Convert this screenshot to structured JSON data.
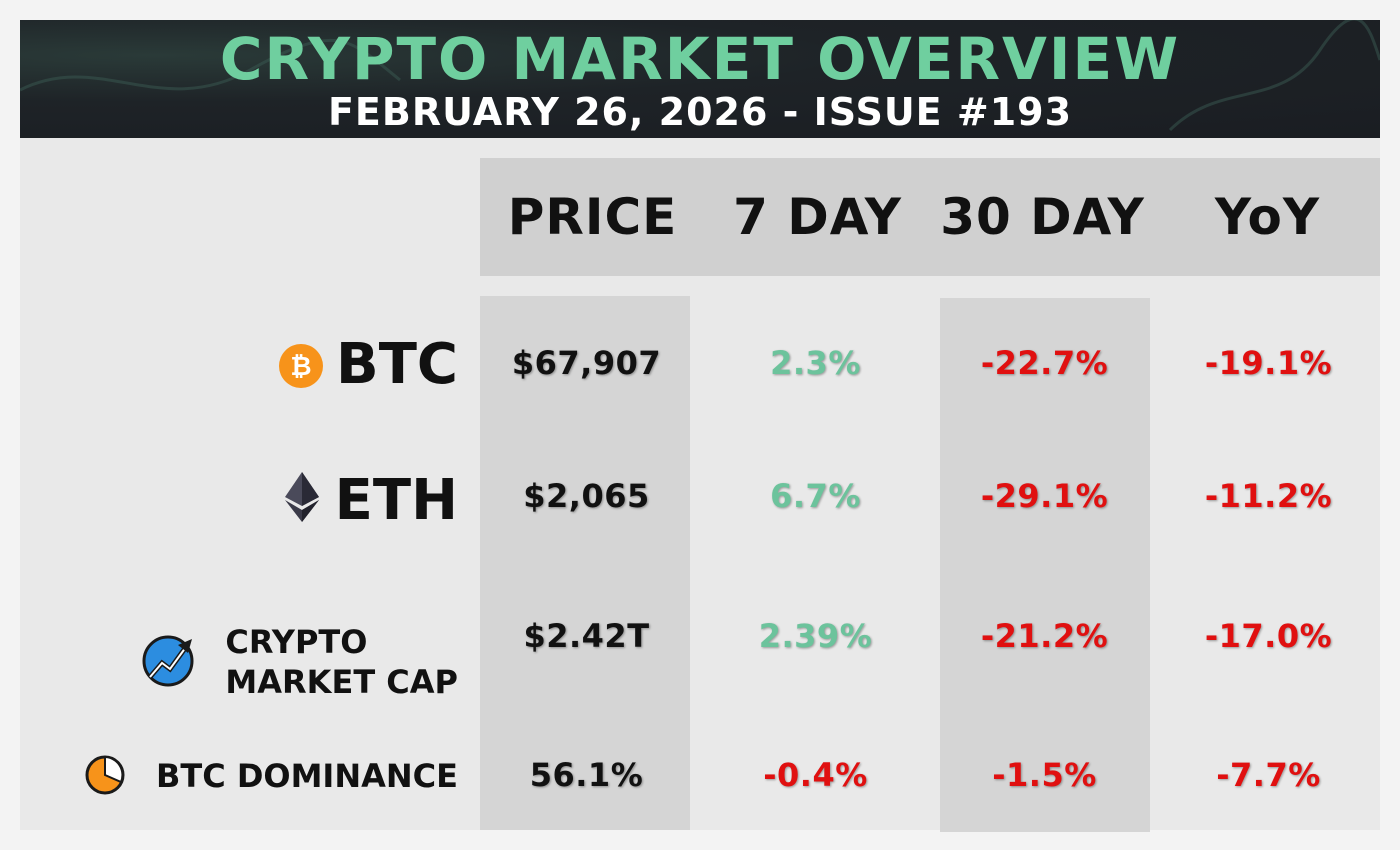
{
  "header": {
    "title": "CRYPTO MARKET OVERVIEW",
    "subtitle": "FEBRUARY 26, 2026 - ISSUE #193"
  },
  "columns": [
    "PRICE",
    "7 DAY",
    "30 DAY",
    "YoY"
  ],
  "rows": [
    {
      "label": "BTC",
      "icon": "bitcoin-icon",
      "price": "$67,907",
      "d7": "2.3%",
      "d30": "-22.7%",
      "yoy": "-19.1%"
    },
    {
      "label": "ETH",
      "icon": "ethereum-icon",
      "price": "$2,065",
      "d7": "6.7%",
      "d30": "-29.1%",
      "yoy": "-11.2%"
    },
    {
      "label_line1": "CRYPTO",
      "label_line2": "MARKET CAP",
      "icon": "market-cap-chart-icon",
      "price": "$2.42T",
      "d7": "2.39%",
      "d30": "-21.2%",
      "yoy": "-17.0%"
    },
    {
      "label": "BTC DOMINANCE",
      "icon": "pie-chart-icon",
      "price": "56.1%",
      "d7": "-0.4%",
      "d30": "-1.5%",
      "yoy": "-7.7%"
    }
  ],
  "colors": {
    "positive": "#6cc39c",
    "negative": "#e01010",
    "title": "#6fcf9f",
    "bitcoin": "#f7931a"
  }
}
